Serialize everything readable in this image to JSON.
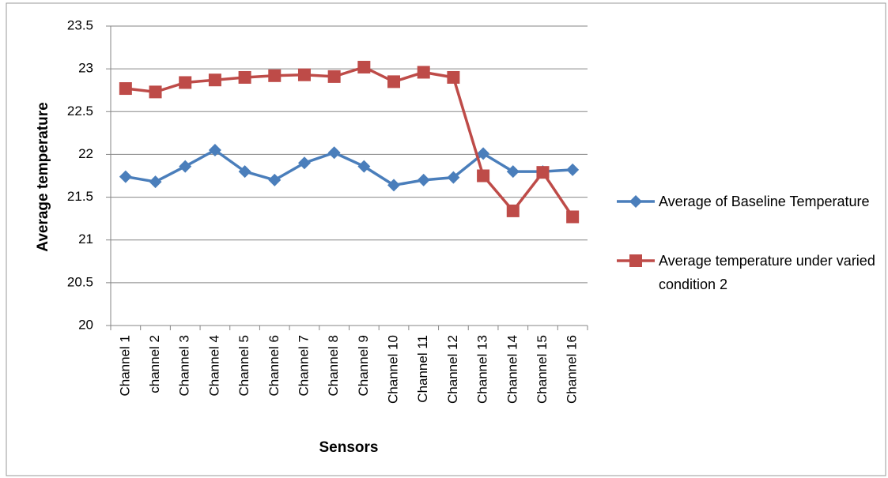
{
  "chart_data": {
    "type": "line",
    "x_label": "Sensors",
    "y_label": "Average temperature",
    "categories": [
      "Channel 1",
      "channel 2",
      "Channel 3",
      "Channel 4",
      "Channel 5",
      "Channel 6",
      "Channel 7",
      "Channel 8",
      "Channel 9",
      "Channel 10",
      "Channel 11",
      "Channel 12",
      "Channel 13",
      "Channel 14",
      "Channel 15",
      "Channel 16"
    ],
    "series": [
      {
        "name": "Average of Baseline Temperature",
        "color": "#4a7ebb",
        "marker": "diamond",
        "values": [
          21.74,
          21.68,
          21.86,
          22.05,
          21.8,
          21.7,
          21.9,
          22.02,
          21.86,
          21.64,
          21.7,
          21.73,
          22.01,
          21.8,
          21.8,
          21.82
        ]
      },
      {
        "name": "Average temperature under varied condition 2",
        "color": "#be4b48",
        "marker": "square",
        "values": [
          22.77,
          22.73,
          22.84,
          22.87,
          22.9,
          22.92,
          22.93,
          22.91,
          23.02,
          22.85,
          22.96,
          22.9,
          21.75,
          21.34,
          21.79,
          21.27
        ]
      }
    ],
    "ylim": [
      20,
      23.5
    ],
    "yticks": [
      20,
      20.5,
      21,
      21.5,
      22,
      22.5,
      23,
      23.5
    ],
    "grid": true,
    "legend": "right"
  }
}
